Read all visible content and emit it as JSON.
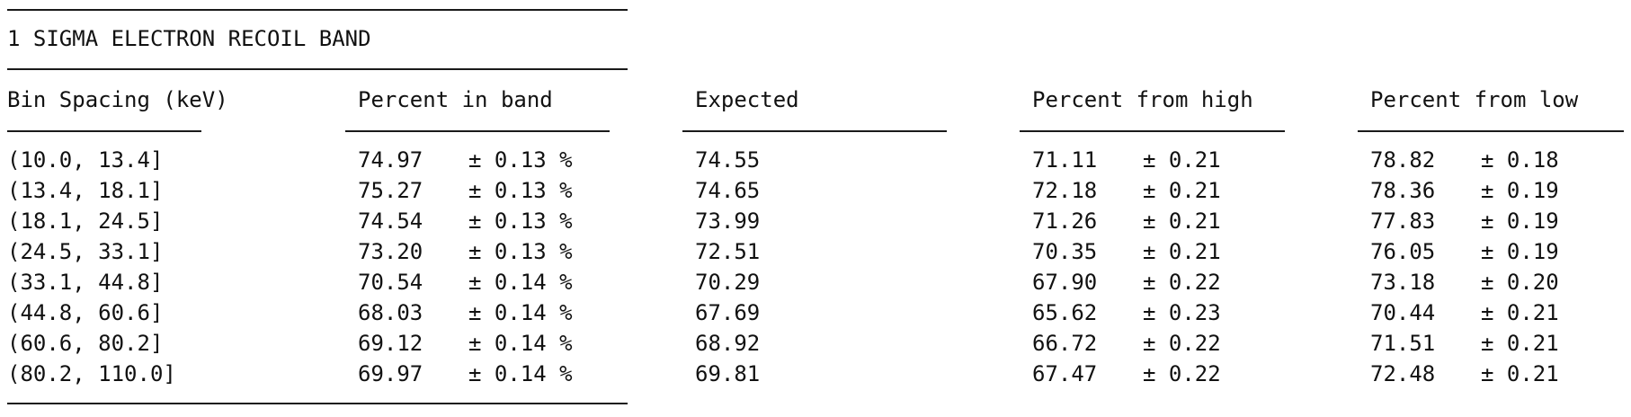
{
  "title": "1 SIGMA ELECTRON RECOIL BAND",
  "headers": {
    "bin": "Bin Spacing (keV)",
    "percent_in_band": "Percent in band",
    "expected": "Expected",
    "percent_from_high": "Percent from high",
    "percent_from_low": "Percent from low"
  },
  "rows": [
    {
      "bin": "(10.0, 13.4]",
      "in_band": "74.97",
      "in_band_err": "± 0.13 %",
      "expected": "74.55",
      "high": "71.11",
      "high_err": "± 0.21",
      "low": "78.82",
      "low_err": "± 0.18"
    },
    {
      "bin": "(13.4, 18.1]",
      "in_band": "75.27",
      "in_band_err": "± 0.13 %",
      "expected": "74.65",
      "high": "72.18",
      "high_err": "± 0.21",
      "low": "78.36",
      "low_err": "± 0.19"
    },
    {
      "bin": "(18.1, 24.5]",
      "in_band": "74.54",
      "in_band_err": "± 0.13 %",
      "expected": "73.99",
      "high": "71.26",
      "high_err": "± 0.21",
      "low": "77.83",
      "low_err": "± 0.19"
    },
    {
      "bin": "(24.5, 33.1]",
      "in_band": "73.20",
      "in_band_err": "± 0.13 %",
      "expected": "72.51",
      "high": "70.35",
      "high_err": "± 0.21",
      "low": "76.05",
      "low_err": "± 0.19"
    },
    {
      "bin": "(33.1, 44.8]",
      "in_band": "70.54",
      "in_band_err": "± 0.14 %",
      "expected": "70.29",
      "high": "67.90",
      "high_err": "± 0.22",
      "low": "73.18",
      "low_err": "± 0.20"
    },
    {
      "bin": "(44.8, 60.6]",
      "in_band": "68.03",
      "in_band_err": "± 0.14 %",
      "expected": "67.69",
      "high": "65.62",
      "high_err": "± 0.23",
      "low": "70.44",
      "low_err": "± 0.21"
    },
    {
      "bin": "(60.6, 80.2]",
      "in_band": "69.12",
      "in_band_err": "± 0.14 %",
      "expected": "68.92",
      "high": "66.72",
      "high_err": "± 0.22",
      "low": "71.51",
      "low_err": "± 0.21"
    },
    {
      "bin": "(80.2, 110.0]",
      "in_band": "69.97",
      "in_band_err": "± 0.14 %",
      "expected": "69.81",
      "high": "67.47",
      "high_err": "± 0.22",
      "low": "72.48",
      "low_err": "± 0.21"
    }
  ]
}
